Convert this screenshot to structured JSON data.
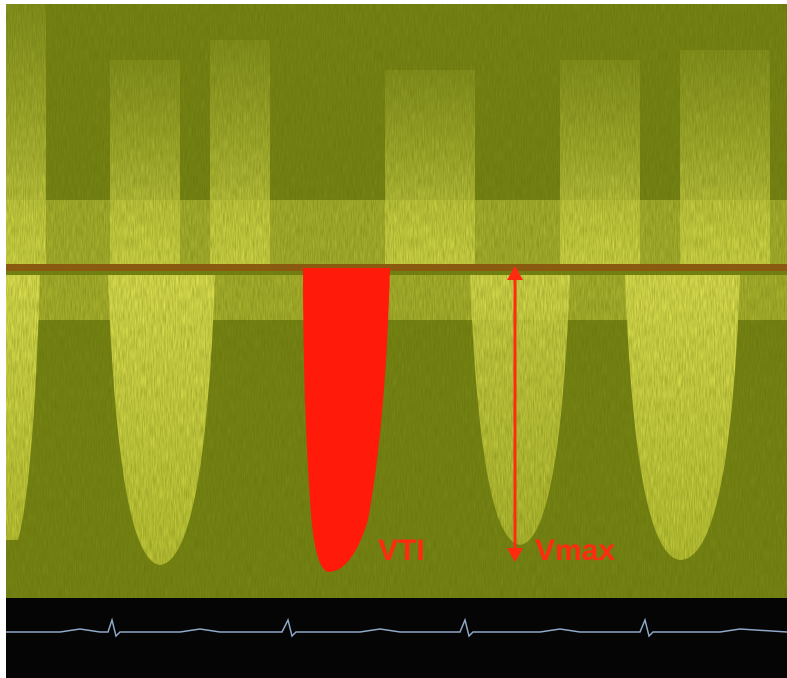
{
  "annotations": {
    "vti": "VTI",
    "vmax": "Vmax"
  }
}
